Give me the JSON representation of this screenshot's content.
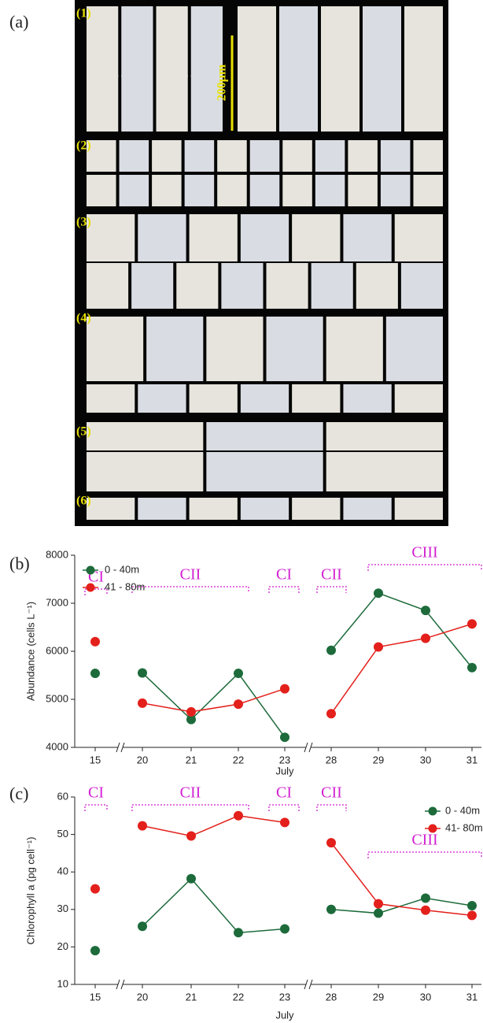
{
  "panel_a": {
    "label": "(a)",
    "row_labels": [
      "(1)",
      "(2)",
      "(3)",
      "(4)",
      "(5)",
      "(6)"
    ],
    "scale_bar": "200μm"
  },
  "chart_data": [
    {
      "type": "line",
      "panel_label": "(b)",
      "ylabel": "Abundance (cells L⁻¹)",
      "xlabel": "July",
      "categories": [
        "15",
        "20",
        "21",
        "22",
        "23",
        "28",
        "29",
        "30",
        "31"
      ],
      "series": [
        {
          "name": "0 - 40m",
          "color": "#1d6b3b",
          "values": [
            5540,
            5550,
            4580,
            5540,
            4210,
            6020,
            7210,
            6850,
            5660
          ]
        },
        {
          "name": "41 - 80m",
          "color": "#e3201b",
          "values": [
            6200,
            4920,
            4740,
            4900,
            5220,
            4700,
            6090,
            6270,
            6570
          ]
        }
      ],
      "ylim": [
        4000,
        8000
      ],
      "yticks": [
        4000,
        5000,
        6000,
        7000,
        8000
      ],
      "legend": "upper left",
      "annotations": [
        "CI",
        "CII",
        "CI",
        "CII",
        "CIII"
      ]
    },
    {
      "type": "line",
      "panel_label": "(c)",
      "ylabel": "Chlorophyll a (pg cell⁻¹)",
      "xlabel": "July",
      "categories": [
        "15",
        "20",
        "21",
        "22",
        "23",
        "28",
        "29",
        "30",
        "31"
      ],
      "series": [
        {
          "name": "0 - 40m",
          "color": "#1d6b3b",
          "values": [
            19,
            25.5,
            38.2,
            23.8,
            24.8,
            30,
            29,
            33,
            31
          ]
        },
        {
          "name": "41- 80m",
          "color": "#e3201b",
          "values": [
            35.5,
            52.3,
            49.6,
            55,
            53.2,
            47.8,
            31.5,
            29.8,
            28.4
          ]
        }
      ],
      "ylim": [
        10,
        60
      ],
      "yticks": [
        10,
        20,
        30,
        40,
        50,
        60
      ],
      "legend": "upper right",
      "annotations": [
        "CI",
        "CII",
        "CI",
        "CII",
        "CIII"
      ]
    }
  ]
}
